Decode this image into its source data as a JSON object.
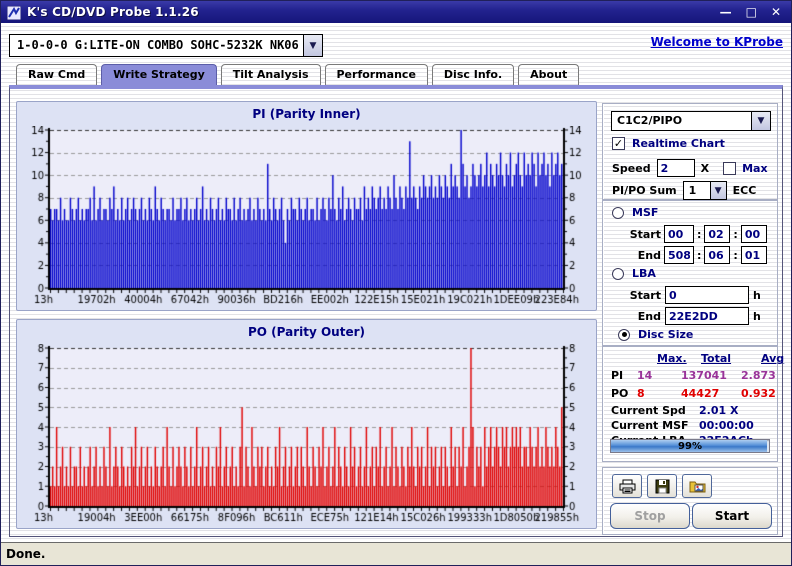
{
  "window": {
    "title": "K's CD/DVD Probe 1.1.26",
    "controls": {
      "minimize": "—",
      "maximize": "□",
      "close": "✕"
    }
  },
  "header": {
    "drive_value": "1-0-0-0 G:LITE-ON COMBO SOHC-5232K NK06",
    "welcome_link": "Welcome to KProbe"
  },
  "tabs": [
    {
      "label": "Raw Cmd",
      "active": false
    },
    {
      "label": "Write Strategy",
      "active": true
    },
    {
      "label": "Tilt Analysis",
      "active": false
    },
    {
      "label": "Performance",
      "active": false
    },
    {
      "label": "Disc Info.",
      "active": false
    },
    {
      "label": "About",
      "active": false
    }
  ],
  "colors": {
    "accent": "#8a8cd8",
    "pi_bar": "#0000cc",
    "po_bar": "#e00000",
    "pi_text": "#993399",
    "po_text": "#e00000",
    "navy_text": "#000080",
    "link": "#0000cc"
  },
  "chart_data": [
    {
      "type": "bar",
      "title": "PI (Parity Inner)",
      "color": "#0000cc",
      "xlabel": "",
      "ylabel": "",
      "ylim": [
        0,
        14
      ],
      "yticks": [
        0,
        2,
        4,
        6,
        8,
        10,
        12,
        14
      ],
      "grid": "dashed",
      "x_ticklabels": [
        "13h",
        "19702h",
        "40004h",
        "67042h",
        "90036h",
        "BD216h",
        "EE002h",
        "122E15h",
        "15E021h",
        "19C021h",
        "1DEE09h",
        "223E84h"
      ],
      "values": [
        7,
        6,
        7,
        7,
        6,
        8,
        6,
        7,
        6,
        6,
        8,
        7,
        6,
        7,
        8,
        6,
        7,
        6,
        7,
        7,
        8,
        6,
        9,
        6,
        7,
        8,
        6,
        7,
        7,
        6,
        8,
        7,
        9,
        6,
        7,
        6,
        8,
        6,
        7,
        8,
        6,
        7,
        8,
        7,
        6,
        7,
        8,
        6,
        7,
        6,
        8,
        7,
        6,
        9,
        7,
        6,
        8,
        7,
        6,
        7,
        7,
        6,
        8,
        6,
        7,
        7,
        8,
        6,
        7,
        8,
        6,
        7,
        6,
        7,
        8,
        6,
        7,
        9,
        6,
        7,
        6,
        8,
        7,
        6,
        7,
        8,
        6,
        7,
        6,
        8,
        7,
        7,
        6,
        8,
        6,
        7,
        8,
        6,
        7,
        6,
        7,
        8,
        6,
        7,
        6,
        8,
        7,
        6,
        7,
        6,
        11,
        7,
        6,
        8,
        7,
        6,
        7,
        8,
        6,
        4,
        7,
        6,
        8,
        7,
        7,
        6,
        8,
        7,
        6,
        7,
        8,
        6,
        7,
        7,
        6,
        8,
        6,
        7,
        8,
        7,
        6,
        8,
        7,
        10,
        7,
        6,
        8,
        7,
        9,
        6,
        7,
        8,
        7,
        6,
        8,
        7,
        7,
        8,
        6,
        9,
        7,
        8,
        7,
        9,
        8,
        7,
        8,
        9,
        7,
        8,
        7,
        9,
        8,
        7,
        10,
        8,
        7,
        9,
        8,
        7,
        9,
        8,
        13,
        8,
        9,
        8,
        7,
        9,
        8,
        10,
        9,
        8,
        9,
        10,
        8,
        9,
        8,
        10,
        9,
        8,
        10,
        9,
        8,
        11,
        9,
        10,
        9,
        8,
        14,
        11,
        9,
        10,
        8,
        9,
        11,
        10,
        9,
        10,
        11,
        9,
        10,
        12,
        9,
        11,
        10,
        9,
        11,
        10,
        12,
        10,
        9,
        11,
        10,
        12,
        9,
        10,
        11,
        12,
        10,
        9,
        12,
        10,
        11,
        10,
        12,
        11,
        9,
        12,
        10,
        11,
        12,
        10,
        11,
        9,
        12,
        10,
        11,
        12,
        10,
        11
      ]
    },
    {
      "type": "bar",
      "title": "PO (Parity Outer)",
      "color": "#e00000",
      "xlabel": "",
      "ylabel": "",
      "ylim": [
        0,
        8
      ],
      "yticks": [
        0,
        1,
        2,
        3,
        4,
        5,
        6,
        7,
        8
      ],
      "grid": "dashed",
      "x_ticklabels": [
        "13h",
        "19004h",
        "3EE00h",
        "66175h",
        "8F096h",
        "BC611h",
        "ECE75h",
        "121E14h",
        "15C026h",
        "199333h",
        "1D8050h",
        "219855h"
      ],
      "values": [
        1,
        2,
        1,
        4,
        1,
        2,
        3,
        1,
        2,
        1,
        3,
        1,
        2,
        2,
        1,
        3,
        1,
        2,
        1,
        2,
        3,
        1,
        2,
        3,
        1,
        2,
        1,
        3,
        2,
        1,
        4,
        1,
        2,
        3,
        2,
        1,
        3,
        2,
        1,
        2,
        1,
        3,
        2,
        4,
        1,
        2,
        3,
        1,
        2,
        3,
        1,
        2,
        1,
        3,
        2,
        1,
        2,
        3,
        1,
        4,
        2,
        1,
        3,
        1,
        2,
        3,
        2,
        1,
        3,
        2,
        1,
        3,
        1,
        2,
        4,
        1,
        2,
        3,
        1,
        2,
        3,
        1,
        2,
        1,
        3,
        2,
        4,
        1,
        2,
        3,
        1,
        2,
        3,
        1,
        2,
        1,
        3,
        5,
        1,
        3,
        2,
        1,
        4,
        2,
        1,
        3,
        2,
        3,
        1,
        2,
        3,
        1,
        2,
        1,
        3,
        2,
        4,
        1,
        2,
        3,
        1,
        2,
        3,
        1,
        2,
        3,
        1,
        3,
        2,
        1,
        4,
        2,
        1,
        3,
        2,
        1,
        3,
        2,
        4,
        1,
        2,
        3,
        1,
        2,
        4,
        1,
        3,
        2,
        1,
        3,
        2,
        1,
        4,
        2,
        3,
        1,
        2,
        3,
        1,
        2,
        4,
        1,
        2,
        3,
        1,
        3,
        2,
        4,
        1,
        2,
        3,
        1,
        2,
        4,
        1,
        3,
        2,
        1,
        3,
        2,
        1,
        3,
        2,
        4,
        2,
        1,
        3,
        2,
        3,
        1,
        2,
        4,
        1,
        3,
        2,
        3,
        1,
        2,
        3,
        1,
        3,
        2,
        1,
        4,
        2,
        3,
        1,
        3,
        2,
        4,
        1,
        2,
        3,
        8,
        4,
        1,
        3,
        2,
        3,
        1,
        4,
        2,
        3,
        4,
        2,
        3,
        4,
        3,
        2,
        4,
        3,
        4,
        2,
        3,
        4,
        3,
        4,
        3,
        4,
        2,
        3,
        3,
        2,
        4,
        3,
        2,
        3,
        4,
        2,
        3,
        2,
        4,
        3,
        2,
        3,
        2,
        4,
        3,
        2,
        5
      ]
    }
  ],
  "side": {
    "mode_select": "C1C2/PIPO",
    "realtime_label": "Realtime Chart",
    "realtime_checked": true,
    "speed_label": "Speed",
    "speed_value": "2",
    "speed_unit": "X",
    "max_label": "Max",
    "max_checked": false,
    "pipo_sum_label": "PI/PO Sum",
    "pipo_sum_value": "1",
    "ecc_label": "ECC",
    "msf": {
      "label": "MSF",
      "selected": false,
      "start_label": "Start",
      "end_label": "End",
      "separator": ":",
      "start": [
        "00",
        "02",
        "00"
      ],
      "end": [
        "508",
        "06",
        "01"
      ]
    },
    "lba": {
      "label": "LBA",
      "selected": false,
      "start_label": "Start",
      "end_label": "End",
      "start": "0",
      "end": "22E2DD",
      "unit": "h"
    },
    "disc_size": {
      "label": "Disc Size",
      "selected": true
    },
    "stats": {
      "headers": [
        "Max.",
        "Total",
        "Avg"
      ],
      "rows": [
        {
          "label": "PI",
          "max": "14",
          "total": "137041",
          "avg": "2.873"
        },
        {
          "label": "PO",
          "max": "8",
          "total": "44427",
          "avg": "0.932"
        }
      ]
    },
    "current": [
      {
        "label": "Current Spd",
        "value": "2.01  X"
      },
      {
        "label": "Current MSF",
        "value": "00:00:00"
      },
      {
        "label": "Current LBA",
        "value": "22E2ACh"
      }
    ],
    "progress": {
      "percent": 99,
      "label": "99%"
    },
    "buttons": {
      "stop": "Stop",
      "start": "Start",
      "stop_disabled": true
    }
  },
  "statusbar": {
    "text": "Done."
  }
}
